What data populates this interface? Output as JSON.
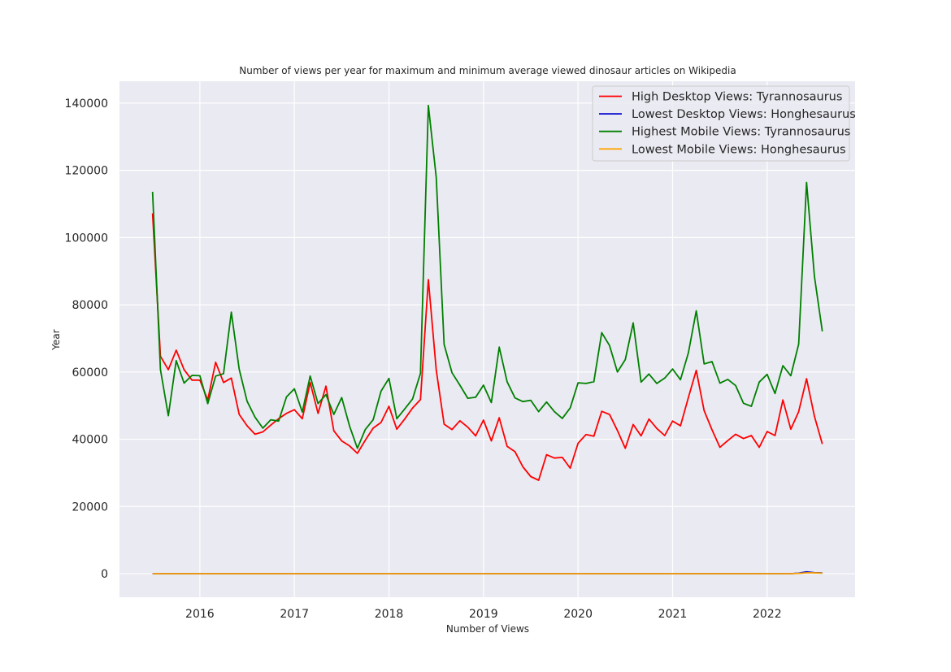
{
  "chart_data": {
    "type": "line",
    "title": "Number of views per year for maximum and minimum average viewed dinosaur articles on Wikipedia",
    "xlabel": "Number of Views",
    "ylabel": "Year",
    "xlim": [
      2015.15,
      2022.93
    ],
    "ylim": [
      -7000,
      146500
    ],
    "x_ticks": [
      2016,
      2017,
      2018,
      2019,
      2020,
      2021,
      2022
    ],
    "x_tick_labels": [
      "2016",
      "2017",
      "2018",
      "2019",
      "2020",
      "2021",
      "2022"
    ],
    "y_ticks": [
      0,
      20000,
      40000,
      60000,
      80000,
      100000,
      120000,
      140000
    ],
    "y_tick_labels": [
      "0",
      "20000",
      "40000",
      "60000",
      "80000",
      "100000",
      "120000",
      "140000"
    ],
    "grid": true,
    "background": "#eaeaf2",
    "legend_position": "top-right",
    "x_start": "2015-07",
    "series": [
      {
        "name": "High Desktop Views: Tyrannosaurus",
        "color": "#ff0000",
        "values": [
          107200,
          64700,
          60700,
          66500,
          60700,
          57600,
          57600,
          51700,
          62900,
          56900,
          58200,
          47400,
          44000,
          41500,
          42200,
          44200,
          46100,
          47700,
          48800,
          46100,
          56900,
          47700,
          55800,
          42500,
          39500,
          38000,
          35800,
          39700,
          43300,
          45000,
          49800,
          43000,
          46000,
          49300,
          51800,
          87500,
          60600,
          44500,
          42900,
          45500,
          43600,
          41000,
          45700,
          39500,
          46400,
          37900,
          36300,
          31800,
          28900,
          27800,
          35400,
          34400,
          34600,
          31400,
          38800,
          41400,
          40900,
          48300,
          47400,
          42600,
          37300,
          44400,
          41000,
          46000,
          43200,
          41100,
          45400,
          44000,
          52400,
          60500,
          48500,
          42800,
          37600,
          39600,
          41500,
          40200,
          41100,
          37600,
          42300,
          41100,
          51700,
          43000,
          48200,
          58000,
          46800,
          38600
        ]
      },
      {
        "name": "Lowest Desktop Views: Honghesaurus",
        "color": "#0000cc",
        "values": [
          0,
          0,
          0,
          0,
          0,
          0,
          0,
          0,
          0,
          0,
          0,
          0,
          0,
          0,
          0,
          0,
          0,
          0,
          0,
          0,
          0,
          0,
          0,
          0,
          0,
          0,
          0,
          0,
          0,
          0,
          0,
          0,
          0,
          0,
          0,
          0,
          0,
          0,
          0,
          0,
          0,
          0,
          0,
          0,
          0,
          0,
          0,
          0,
          0,
          0,
          0,
          0,
          0,
          0,
          0,
          0,
          0,
          0,
          0,
          0,
          0,
          0,
          0,
          0,
          0,
          0,
          0,
          0,
          0,
          0,
          0,
          0,
          0,
          0,
          0,
          0,
          0,
          0,
          0,
          0,
          0,
          0,
          150,
          550,
          300,
          200
        ]
      },
      {
        "name": "Highest Mobile Views: Tyrannosaurus",
        "color": "#008000",
        "values": [
          113600,
          60700,
          47000,
          63400,
          56700,
          59000,
          58900,
          50600,
          58800,
          59500,
          77800,
          60800,
          51300,
          46600,
          43300,
          45800,
          45400,
          52600,
          55000,
          48100,
          58800,
          50600,
          53300,
          47400,
          52400,
          43900,
          37300,
          42900,
          45800,
          54300,
          58100,
          46100,
          49000,
          52000,
          59600,
          139300,
          117900,
          68200,
          59800,
          56100,
          52200,
          52500,
          56100,
          50900,
          67400,
          57100,
          52300,
          51200,
          51600,
          48200,
          51100,
          48200,
          46200,
          49300,
          56800,
          56600,
          57100,
          71700,
          67900,
          60000,
          63700,
          74600,
          57000,
          59400,
          56600,
          58200,
          60900,
          57700,
          65700,
          78200,
          62400,
          63100,
          56700,
          57800,
          56000,
          50700,
          49800,
          57000,
          59300,
          53600,
          61900,
          58900,
          68300,
          116400,
          88400,
          72100
        ]
      },
      {
        "name": "Lowest Mobile Views: Honghesaurus",
        "color": "#ffa500",
        "values": [
          0,
          0,
          0,
          0,
          0,
          0,
          0,
          0,
          0,
          0,
          0,
          0,
          0,
          0,
          0,
          0,
          0,
          0,
          0,
          0,
          0,
          0,
          0,
          0,
          0,
          0,
          0,
          0,
          0,
          0,
          0,
          0,
          0,
          0,
          0,
          0,
          0,
          0,
          0,
          0,
          0,
          0,
          0,
          0,
          0,
          0,
          0,
          0,
          0,
          0,
          0,
          0,
          0,
          0,
          0,
          0,
          0,
          0,
          0,
          0,
          0,
          0,
          0,
          0,
          0,
          0,
          0,
          0,
          0,
          0,
          0,
          0,
          0,
          0,
          0,
          0,
          0,
          0,
          0,
          0,
          0,
          0,
          100,
          250,
          250,
          150
        ]
      }
    ]
  }
}
